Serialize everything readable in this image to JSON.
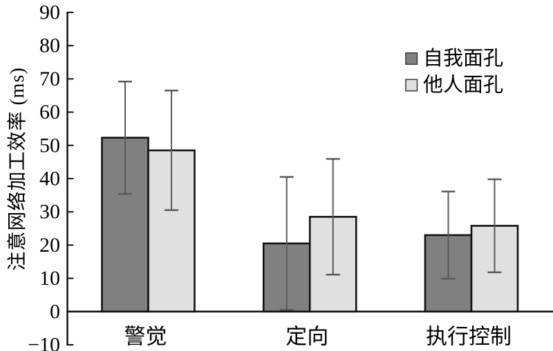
{
  "chart_data": {
    "type": "bar",
    "title": "",
    "categories": [
      "警觉",
      "定向",
      "执行控制"
    ],
    "category_keys": [
      "alertness",
      "orienting",
      "executive-control"
    ],
    "series": [
      {
        "key": "self-face",
        "name": "自我面孔",
        "color": "#808080",
        "values": [
          52.3,
          20.5,
          23.0
        ],
        "errors": [
          16.9,
          20.0,
          13.1
        ]
      },
      {
        "key": "other-face",
        "name": "他人面孔",
        "color": "#e0e0e0",
        "values": [
          48.5,
          28.5,
          25.8
        ],
        "errors": [
          18.0,
          17.4,
          14.0
        ]
      }
    ],
    "ylabel": "注意网络加工效率 (ms)",
    "ylim": [
      -10,
      90
    ],
    "ytick_step": 10,
    "yticks": [
      90,
      80,
      70,
      60,
      50,
      40,
      30,
      20,
      10,
      0,
      -10
    ],
    "grid": false,
    "legend_position": "top-right",
    "colors": {
      "bar_border": "#111111",
      "error_bar": "#595959",
      "axis": "#111111",
      "text": "#000000",
      "legend_swatch_border": "#404040",
      "background": "#ffffff"
    }
  }
}
